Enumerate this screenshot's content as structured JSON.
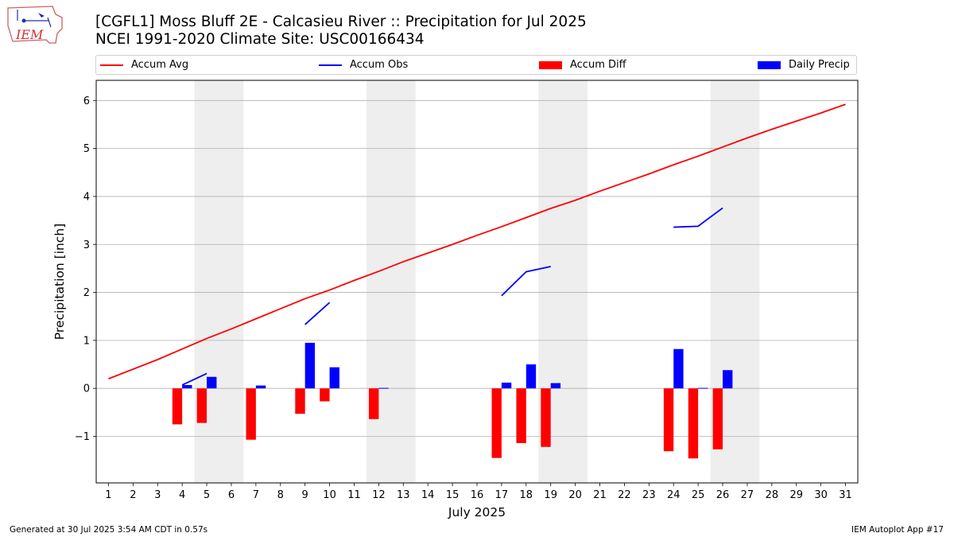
{
  "header": {
    "title_line1": "[CGFL1] Moss Bluff 2E - Calcasieu River :: Precipitation for Jul 2025",
    "title_line2": "NCEI 1991-2020 Climate Site: USC00166434",
    "logo_text": "IEM"
  },
  "legend": {
    "accum_avg": "Accum Avg",
    "accum_obs": "Accum Obs",
    "accum_diff": "Accum Diff",
    "daily_precip": "Daily Precip"
  },
  "footer": {
    "generated": "Generated at 30 Jul 2025 3:54 AM CDT in 0.57s",
    "app": "IEM Autoplot App #17"
  },
  "chart_data": {
    "type": "bar",
    "xlabel": "July 2025",
    "ylabel": "Precipitation [inch]",
    "xlim": [
      0.5,
      31.5
    ],
    "ylim": [
      -1.97,
      6.42
    ],
    "yticks": [
      -1,
      0,
      1,
      2,
      3,
      4,
      5,
      6
    ],
    "ytick_labels": [
      "−1",
      "0",
      "1",
      "2",
      "3",
      "4",
      "5",
      "6"
    ],
    "x_ticks": [
      1,
      2,
      3,
      4,
      5,
      6,
      7,
      8,
      9,
      10,
      11,
      12,
      13,
      14,
      15,
      16,
      17,
      18,
      19,
      20,
      21,
      22,
      23,
      24,
      25,
      26,
      27,
      28,
      29,
      30,
      31
    ],
    "grid": "horizontal",
    "legend_position": "top",
    "weekend_bands": [
      [
        5,
        6
      ],
      [
        12,
        13
      ],
      [
        19,
        20
      ],
      [
        26,
        27
      ]
    ],
    "colors": {
      "accum_avg": "#ff0000",
      "accum_obs": "#0000ff",
      "accum_diff": "#ff0000",
      "daily_precip": "#0000ff",
      "weekend": "#eeeeee",
      "grid": "#b0b0b0"
    },
    "accum_avg": {
      "name": "Accum Avg",
      "days": [
        1,
        2,
        3,
        4,
        5,
        6,
        7,
        8,
        9,
        10,
        11,
        12,
        13,
        14,
        15,
        16,
        17,
        18,
        19,
        20,
        21,
        22,
        23,
        24,
        25,
        26,
        27,
        28,
        29,
        30,
        31
      ],
      "values": [
        0.2,
        0.4,
        0.6,
        0.82,
        1.04,
        1.24,
        1.45,
        1.66,
        1.87,
        2.05,
        2.25,
        2.44,
        2.64,
        2.82,
        3.0,
        3.19,
        3.37,
        3.56,
        3.75,
        3.92,
        4.11,
        4.29,
        4.47,
        4.66,
        4.84,
        5.03,
        5.22,
        5.4,
        5.57,
        5.74,
        5.92
      ]
    },
    "accum_obs": {
      "name": "Accum Obs",
      "segments": [
        {
          "days": [
            4,
            5
          ],
          "values": [
            0.07,
            0.31
          ]
        },
        {
          "days": [
            9,
            10
          ],
          "values": [
            1.33,
            1.79
          ]
        },
        {
          "days": [
            17,
            18,
            19
          ],
          "values": [
            1.93,
            2.43,
            2.54
          ]
        },
        {
          "days": [
            24,
            25,
            26
          ],
          "values": [
            3.36,
            3.38,
            3.76
          ]
        }
      ]
    },
    "accum_diff": {
      "name": "Accum Diff",
      "days": [
        4,
        5,
        7,
        9,
        10,
        12,
        17,
        18,
        19,
        24,
        25,
        26
      ],
      "values": [
        -0.75,
        -0.72,
        -1.07,
        -0.53,
        -0.27,
        -0.64,
        -1.45,
        -1.14,
        -1.22,
        -1.31,
        -1.46,
        -1.27
      ]
    },
    "daily_precip": {
      "name": "Daily Precip",
      "days": [
        4,
        5,
        7,
        9,
        10,
        12,
        17,
        18,
        19,
        24,
        25,
        26
      ],
      "values": [
        0.07,
        0.24,
        0.06,
        0.95,
        0.44,
        0.01,
        0.12,
        0.5,
        0.11,
        0.82,
        0.01,
        0.38
      ]
    }
  }
}
